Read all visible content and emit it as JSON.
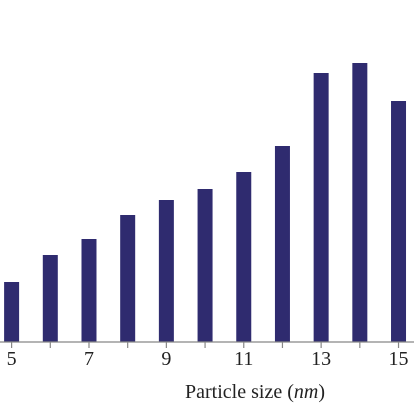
{
  "chart_data": {
    "type": "bar",
    "x": [
      5,
      6,
      7,
      8,
      9,
      10,
      11,
      12,
      13,
      14,
      15
    ],
    "values": [
      60,
      87,
      103,
      127,
      142,
      153,
      170,
      196,
      269,
      279,
      241
    ],
    "color": "#2f2b6f",
    "xlim": [
      4.7,
      15.4
    ],
    "xticks": [
      5,
      7,
      9,
      11,
      13,
      15
    ],
    "ylim": [
      0,
      342
    ],
    "xlabel": {
      "start": "Particle size (",
      "italic": "nm",
      "end": ")"
    }
  }
}
